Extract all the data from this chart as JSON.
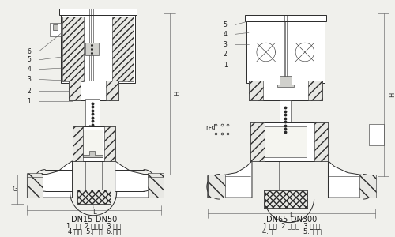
{
  "bg_color": "#f0f0ec",
  "left_title": "DN15-DN50",
  "left_line1": "1.阅体  2.阅塞组  3.弹簧",
  "left_line2": "4.阅盖  5.铁 芯  6.线圈",
  "right_title": "DN65-DN300",
  "right_line1": "1.阅体  2.阅塞组  3.弹 簧",
  "right_line2": "4.阅盖             5.电磁铁",
  "font_size_title": 7,
  "font_size_body": 6,
  "line_color": "#2a2a2a",
  "text_color": "#1a1a1a",
  "lc": "#2a2a2a"
}
